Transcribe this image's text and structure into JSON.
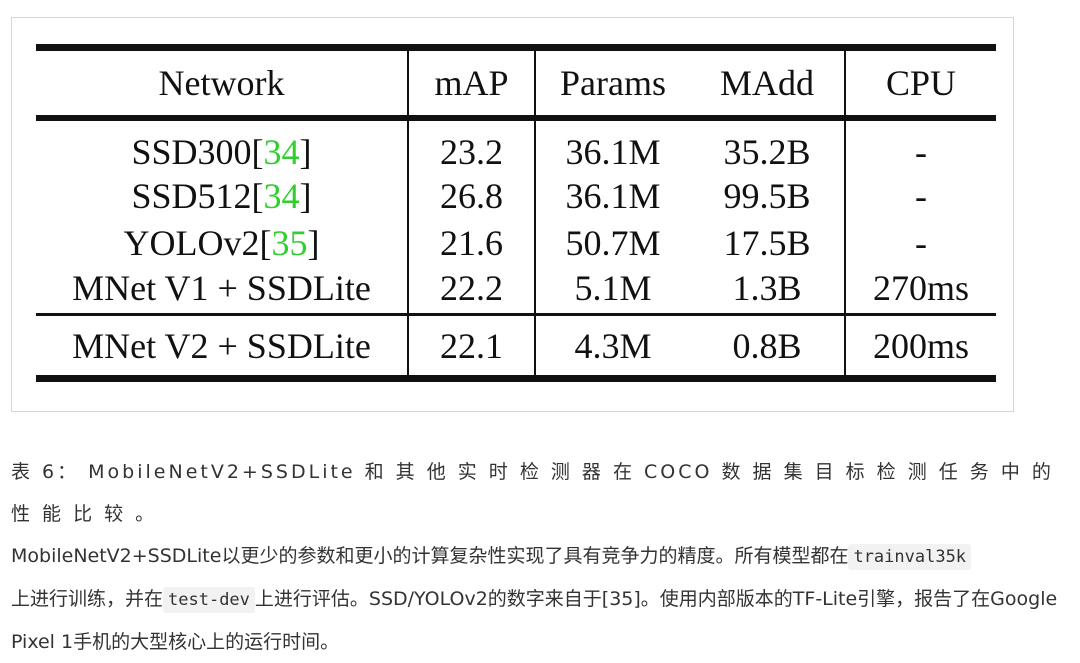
{
  "table": {
    "headers": [
      "Network",
      "mAP",
      "Params",
      "MAdd",
      "CPU"
    ],
    "rows": [
      {
        "network": "SSD300",
        "ref": "34",
        "map": "23.2",
        "params": "36.1M",
        "madd": "35.2B",
        "cpu": "-"
      },
      {
        "network": "SSD512",
        "ref": "34",
        "map": "26.8",
        "params": "36.1M",
        "madd": "99.5B",
        "cpu": "-"
      },
      {
        "network": "YOLOv2",
        "ref": "35",
        "map": "21.6",
        "params": "50.7M",
        "madd": "17.5B",
        "cpu": "-"
      },
      {
        "network": "MNet V1 + SSDLite",
        "map": "22.2",
        "params": "5.1M",
        "madd": "1.3B",
        "cpu": "270ms"
      }
    ],
    "final_row": {
      "network": "MNet V2 + SSDLite",
      "map": "22.1",
      "params": "4.3M",
      "madd": "0.8B",
      "cpu": "200ms"
    }
  },
  "caption": {
    "lead": "表 6： MobileNetV2+SSDLite 和 其 他 实 时 检 测 器 在 COCO 数 据 集 目 标 检 测 任 务 中 的 性 能 比 较 。",
    "part1": "MobileNetV2+SSDLite以更少的参数和更小的计算复杂性实现了具有竞争力的精度。所有模型都在",
    "code1": "trainval35k",
    "part2": "上进行训练，并在",
    "code2": "test-dev",
    "part3": "上进行评估。SSD/YOLOv2的数字来自于[35]。使用内部版本的TF-Lite引擎，报告了在Google Pixel 1手机的大型核心上的运行时间。"
  },
  "colors": {
    "reference_link": "#2fcf2f",
    "table_rule": "#111111",
    "caption_text": "#333333",
    "code_background": "#f2f2f2"
  }
}
